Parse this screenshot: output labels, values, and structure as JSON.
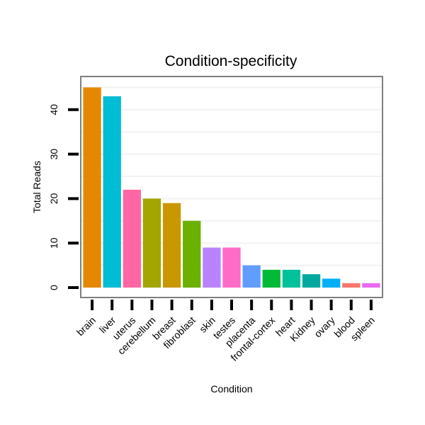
{
  "chart_data": {
    "type": "bar",
    "title": "Condition-specificity",
    "xlabel": "Condition",
    "ylabel": "Total Reads",
    "ylim": [
      -2,
      46.5
    ],
    "yticks": [
      0,
      10,
      20,
      30,
      40
    ],
    "grid": true,
    "categories": [
      "brain",
      "liver",
      "uterus",
      "cerebellum",
      "breast",
      "fibroblast",
      "skin",
      "testes",
      "placenta",
      "frontal-cortex",
      "heart",
      "Kidney",
      "ovary",
      "blood",
      "spleen"
    ],
    "values": [
      45,
      43,
      22,
      20,
      19,
      15,
      9,
      9,
      5,
      4,
      4,
      3,
      2,
      1,
      1
    ],
    "colors": [
      "#E58700",
      "#00BCD4",
      "#FF67A4",
      "#A3A500",
      "#C99800",
      "#6BB100",
      "#B983FF",
      "#FF6CC7",
      "#619CFF",
      "#00BA38",
      "#00C19A",
      "#00A9A0",
      "#00B0F6",
      "#F8766D",
      "#E76BF3"
    ]
  }
}
